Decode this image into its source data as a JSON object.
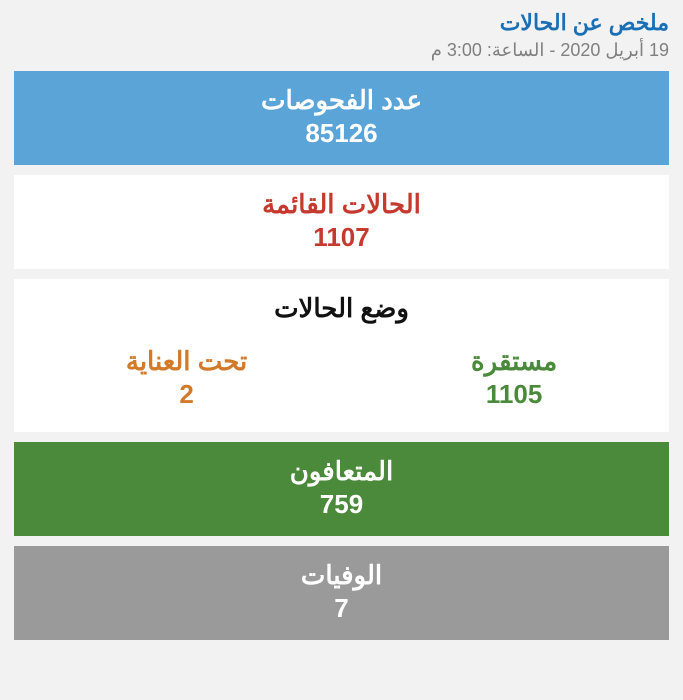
{
  "header": {
    "title": "ملخص عن الحالات",
    "date": "19 أبريل 2020 - الساعة: 3:00 م"
  },
  "tests": {
    "label": "عدد الفحوصات",
    "value": "85126"
  },
  "active": {
    "label": "الحالات القائمة",
    "value": "1107"
  },
  "status": {
    "title": "وضع الحالات",
    "stable_label": "مستقرة",
    "stable_value": "1105",
    "critical_label": "تحت العناية",
    "critical_value": "2"
  },
  "recovered": {
    "label": "المتعافون",
    "value": "759"
  },
  "deaths": {
    "label": "الوفيات",
    "value": "7"
  },
  "colors": {
    "title_color": "#1a6fb5",
    "date_color": "#808080",
    "tests_bg": "#5ba4d7",
    "tests_fg": "#ffffff",
    "active_bg": "#ffffff",
    "active_fg": "#c43a2f",
    "status_bg": "#ffffff",
    "status_title_fg": "#111111",
    "stable_fg": "#4a8a3a",
    "critical_fg": "#d17a2a",
    "recovered_bg": "#4a8a3a",
    "recovered_fg": "#ffffff",
    "deaths_bg": "#9a9a9a",
    "deaths_fg": "#ffffff",
    "page_bg": "#f2f2f2"
  },
  "typography": {
    "title_fontsize": 22,
    "date_fontsize": 18,
    "panel_label_fontsize": 26,
    "panel_value_fontsize": 26
  }
}
